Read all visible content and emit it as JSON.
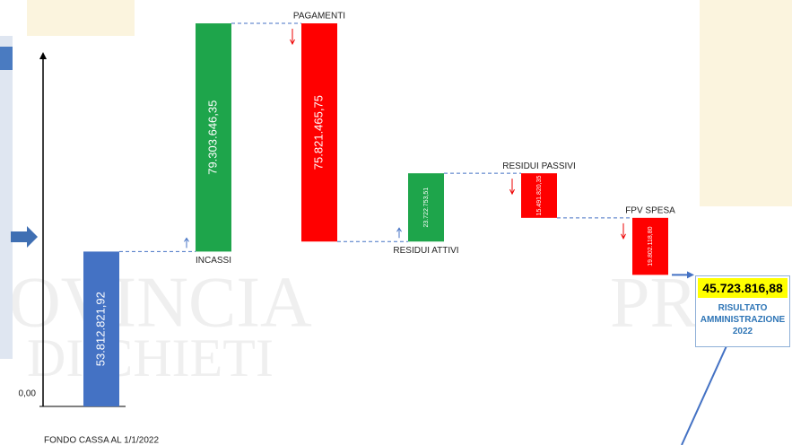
{
  "chart_data": {
    "type": "waterfall",
    "categories": [
      "FONDO CASSA AL 1/1/2022",
      "INCASSI",
      "PAGAMENTI",
      "RESIDUI ATTIVI",
      "RESIDUI PASSIVI",
      "FPV SPESA"
    ],
    "values": [
      53812821.92,
      79303646.35,
      -75821465.75,
      23722753.51,
      -15491820.35,
      -19802118.8
    ],
    "value_labels": [
      "53.812.821,92",
      "79.303.646,35",
      "75.821.465,75",
      "23.722.753,51",
      "15.491.820,35",
      "19.802.118,80"
    ],
    "colors": [
      "#4472c4",
      "#1ea54b",
      "#ff0000",
      "#1ea54b",
      "#ff0000",
      "#ff0000"
    ],
    "ylim": [
      0,
      135000000
    ],
    "yticks": [
      {
        "value": 0,
        "label": "0,00"
      }
    ],
    "total": 45723816.88,
    "total_label": "45.723.816,88",
    "total_caption": "RISULTATO AMMINISTRAZIONE 2022"
  }
}
